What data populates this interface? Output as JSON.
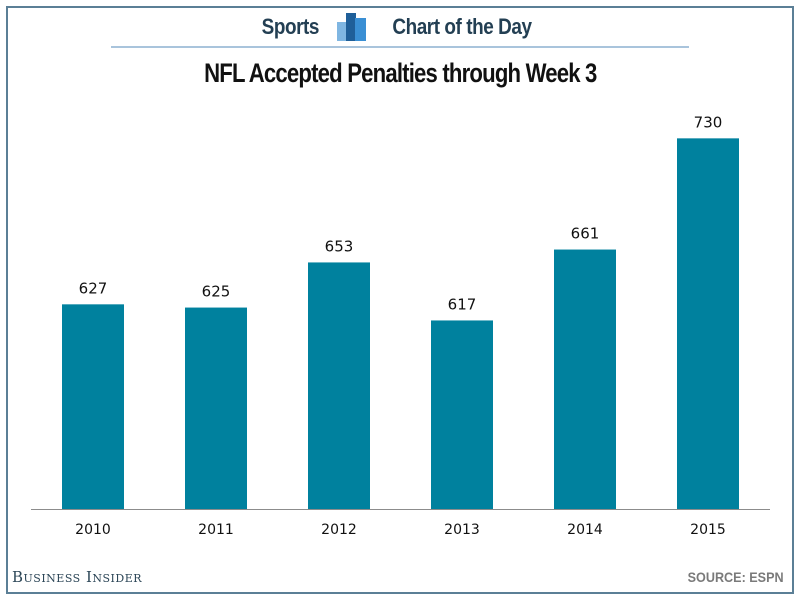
{
  "header": {
    "left_label": "Sports",
    "right_label": "Chart of the Day",
    "icon": "bar-chart-icon"
  },
  "footer": {
    "brand": "Business Insider",
    "source": "SOURCE: ESPN"
  },
  "colors": {
    "bar": "#00819e",
    "header_text": "#233f53",
    "border": "#5b7f96",
    "header_rule": "#a9c4dc",
    "axis": "#8c8c8c",
    "icon_light": "#7fb6e2",
    "icon_dark": "#1f5f99",
    "icon_mid": "#3a8fd4"
  },
  "chart_data": {
    "type": "bar",
    "title": "NFL Accepted Penalties through Week 3",
    "xlabel": "",
    "ylabel": "",
    "categories": [
      "2010",
      "2011",
      "2012",
      "2013",
      "2014",
      "2015"
    ],
    "values": [
      627,
      625,
      653,
      617,
      661,
      730
    ],
    "data_labels": [
      "627",
      "625",
      "653",
      "617",
      "661",
      "730"
    ],
    "ylim": [
      500,
      760
    ],
    "grid": false,
    "legend": "none"
  }
}
